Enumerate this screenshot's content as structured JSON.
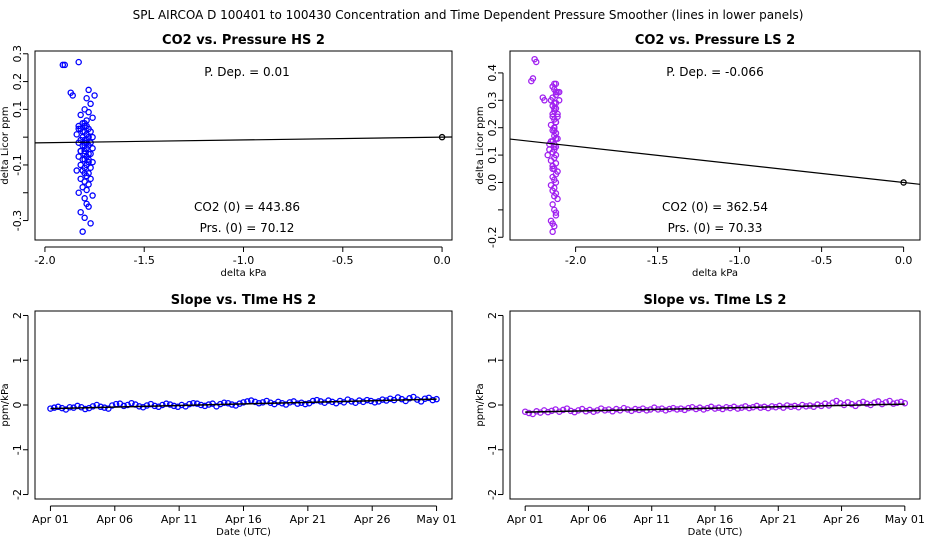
{
  "title": "SPL   AIRCOA D   100401 to 100430   Concentration and Time Dependent Pressure Smoother (lines in lower panels)",
  "colors": {
    "hs": "#0000ff",
    "ls": "#a020f0",
    "line": "#000000"
  },
  "chart_data": [
    {
      "id": "p1",
      "type": "scatter",
      "title": "CO2 vs. Pressure HS 2",
      "xlabel": "delta kPa",
      "ylabel": "delta Licor ppm",
      "xlim": [
        -2.05,
        0.05
      ],
      "ylim": [
        -0.37,
        0.31
      ],
      "xticks": [
        -2.0,
        -1.5,
        -1.0,
        -0.5,
        0.0
      ],
      "xtick_labels": [
        "-2.0",
        "-1.5",
        "-1.0",
        "-0.5",
        "0.0"
      ],
      "yticks": [
        -0.3,
        -0.2,
        -0.1,
        0.0,
        0.1,
        0.2,
        0.3
      ],
      "ytick_labels": [
        "-0.3",
        "",
        "-0.1",
        "",
        "0.1",
        "0.2",
        "0.3"
      ],
      "annotations": {
        "pdep": "P. Dep. =  0.01",
        "co2_0": "CO2 (0) =  443.86",
        "prs_0": "Prs. (0) =  70.12"
      },
      "fit_line": {
        "x": [
          -2.05,
          0.05
        ],
        "y": [
          -0.0205,
          0.0005
        ]
      },
      "origin_point": {
        "x": 0.0,
        "y": 0.0
      },
      "series_color": "hs",
      "points": {
        "x": [
          -1.91,
          -1.9,
          -1.83,
          -1.87,
          -1.86,
          -1.78,
          -1.79,
          -1.75,
          -1.8,
          -1.77,
          -1.82,
          -1.76,
          -1.81,
          -1.8,
          -1.79,
          -1.83,
          -1.78,
          -1.8,
          -1.77,
          -1.84,
          -1.79,
          -1.81,
          -1.78,
          -1.76,
          -1.8,
          -1.82,
          -1.79,
          -1.77,
          -1.83,
          -1.8,
          -1.78,
          -1.81,
          -1.79,
          -1.76,
          -1.82,
          -1.8,
          -1.78,
          -1.77,
          -1.83,
          -1.79,
          -1.81,
          -1.8,
          -1.76,
          -1.78,
          -1.82,
          -1.79,
          -1.8,
          -1.77,
          -1.81,
          -1.84,
          -1.78,
          -1.8,
          -1.79,
          -1.82,
          -1.77,
          -1.8,
          -1.78,
          -1.81,
          -1.79,
          -1.83,
          -1.76,
          -1.8,
          -1.79,
          -1.78,
          -1.82,
          -1.8,
          -1.77,
          -1.81,
          -1.79,
          -1.8,
          -1.78,
          -1.82,
          -1.8,
          -1.79,
          -1.81,
          -1.83,
          -1.78,
          -1.8,
          -1.79,
          -1.82
        ],
        "y": [
          0.26,
          0.26,
          0.27,
          0.16,
          0.15,
          0.17,
          0.14,
          0.15,
          0.1,
          0.12,
          0.08,
          0.07,
          0.05,
          0.04,
          0.04,
          0.03,
          0.03,
          0.02,
          0.02,
          0.01,
          0.01,
          0.0,
          0.0,
          0.0,
          -0.01,
          -0.01,
          -0.01,
          -0.02,
          -0.02,
          -0.02,
          -0.03,
          -0.03,
          -0.04,
          -0.04,
          -0.05,
          -0.05,
          -0.06,
          -0.06,
          -0.07,
          -0.07,
          -0.08,
          -0.08,
          -0.09,
          -0.09,
          -0.1,
          -0.1,
          -0.11,
          -0.11,
          -0.12,
          -0.12,
          -0.13,
          -0.13,
          -0.14,
          -0.15,
          -0.15,
          -0.16,
          -0.17,
          -0.18,
          -0.19,
          -0.2,
          -0.21,
          -0.22,
          -0.24,
          -0.25,
          -0.27,
          -0.29,
          -0.31,
          -0.34,
          0.06,
          0.05,
          0.09,
          0.03,
          -0.06,
          -0.02,
          0.02,
          0.04,
          -0.08,
          -0.03,
          0.01,
          -0.05
        ]
      }
    },
    {
      "id": "p2",
      "type": "scatter",
      "title": "CO2 vs. Pressure LS 2",
      "xlabel": "delta kPa",
      "ylabel": "delta Licor ppm",
      "xlim": [
        -2.4,
        0.1
      ],
      "ylim": [
        -0.21,
        0.48
      ],
      "xticks": [
        -2.0,
        -1.5,
        -1.0,
        -0.5,
        0.0
      ],
      "xtick_labels": [
        "-2.0",
        "-1.5",
        "-1.0",
        "-0.5",
        "0.0"
      ],
      "yticks": [
        -0.2,
        -0.1,
        0.0,
        0.1,
        0.2,
        0.3,
        0.4
      ],
      "ytick_labels": [
        "-0.2",
        "",
        "0.0",
        "0.1",
        "0.2",
        "0.3",
        "0.4"
      ],
      "annotations": {
        "pdep": "P. Dep. =  -0.066",
        "co2_0": "CO2 (0) =  362.54",
        "prs_0": "Prs. (0) =  70.33"
      },
      "fit_line": {
        "x": [
          -2.4,
          0.1
        ],
        "y": [
          0.1584,
          -0.0066
        ]
      },
      "origin_point": {
        "x": 0.0,
        "y": 0.0
      },
      "series_color": "ls",
      "points": {
        "x": [
          -2.25,
          -2.24,
          -2.26,
          -2.27,
          -2.19,
          -2.2,
          -2.12,
          -2.14,
          -2.13,
          -2.11,
          -2.12,
          -2.15,
          -2.13,
          -2.14,
          -2.12,
          -2.13,
          -2.11,
          -2.14,
          -2.13,
          -2.12,
          -2.15,
          -2.13,
          -2.14,
          -2.12,
          -2.13,
          -2.11,
          -2.14,
          -2.13,
          -2.12,
          -2.16,
          -2.13,
          -2.14,
          -2.12,
          -2.13,
          -2.15,
          -2.12,
          -2.14,
          -2.13,
          -2.11,
          -2.12,
          -2.14,
          -2.13,
          -2.12,
          -2.15,
          -2.13,
          -2.14,
          -2.12,
          -2.13,
          -2.11,
          -2.14,
          -2.13,
          -2.12,
          -2.15,
          -2.13,
          -2.14,
          -2.12,
          -2.13,
          -2.14,
          -2.12,
          -2.13,
          -2.14,
          -2.12,
          -2.13,
          -2.16,
          -2.1,
          -2.17,
          -2.1,
          -2.11,
          -2.15,
          -2.12,
          -2.13,
          -2.14,
          -2.12,
          -2.13,
          -2.14,
          -2.12
        ],
        "y": [
          0.45,
          0.44,
          0.38,
          0.37,
          0.3,
          0.31,
          0.36,
          0.35,
          0.34,
          0.33,
          0.32,
          0.3,
          0.29,
          0.28,
          0.27,
          0.26,
          0.25,
          0.24,
          0.23,
          0.22,
          0.21,
          0.2,
          0.19,
          0.18,
          0.17,
          0.16,
          0.15,
          0.14,
          0.13,
          0.12,
          0.12,
          0.11,
          0.1,
          0.09,
          0.08,
          0.07,
          0.06,
          0.05,
          0.04,
          0.03,
          0.02,
          0.01,
          0.0,
          -0.01,
          -0.02,
          -0.03,
          -0.04,
          -0.05,
          -0.06,
          -0.08,
          -0.1,
          -0.12,
          -0.14,
          -0.16,
          -0.18,
          0.33,
          0.36,
          0.31,
          0.29,
          0.27,
          0.25,
          0.22,
          0.2,
          0.14,
          0.33,
          0.1,
          0.3,
          0.24,
          0.15,
          0.16,
          0.13,
          -0.15,
          -0.11,
          0.19,
          0.05,
          0.18
        ]
      }
    },
    {
      "id": "p3",
      "type": "line",
      "title": "Slope vs. TIme HS 2",
      "xlabel": "Date (UTC)",
      "ylabel": "ppm/kPa",
      "xlim": [
        -1.2,
        31.2
      ],
      "ylim": [
        -2.1,
        2.1
      ],
      "xticks": [
        0,
        5,
        10,
        15,
        20,
        25,
        30
      ],
      "xtick_labels": [
        "Apr 01",
        "Apr 06",
        "Apr 11",
        "Apr 16",
        "Apr 21",
        "Apr 26",
        "May 01"
      ],
      "yticks": [
        -2,
        -1,
        0,
        1,
        2
      ],
      "ytick_labels": [
        "-2",
        "-1",
        "0",
        "1",
        "2"
      ],
      "series_color": "hs",
      "smooth": {
        "x": [
          0,
          10,
          20,
          30
        ],
        "y": [
          -0.08,
          -0.01,
          0.06,
          0.13
        ]
      },
      "points": {
        "x": [
          0,
          0.3,
          0.6,
          0.9,
          1.2,
          1.5,
          1.8,
          2.1,
          2.4,
          2.7,
          3,
          3.3,
          3.6,
          3.9,
          4.2,
          4.5,
          4.8,
          5.1,
          5.4,
          5.7,
          6,
          6.3,
          6.6,
          6.9,
          7.2,
          7.5,
          7.8,
          8.1,
          8.4,
          8.7,
          9,
          9.3,
          9.6,
          9.9,
          10.2,
          10.5,
          10.8,
          11.1,
          11.4,
          11.7,
          12,
          12.3,
          12.6,
          12.9,
          13.2,
          13.5,
          13.8,
          14.1,
          14.4,
          14.7,
          15,
          15.3,
          15.6,
          15.9,
          16.2,
          16.5,
          16.8,
          17.1,
          17.4,
          17.7,
          18,
          18.3,
          18.6,
          18.9,
          19.2,
          19.5,
          19.8,
          20.1,
          20.4,
          20.7,
          21,
          21.3,
          21.6,
          21.9,
          22.2,
          22.5,
          22.8,
          23.1,
          23.4,
          23.7,
          24,
          24.3,
          24.6,
          24.9,
          25.2,
          25.5,
          25.8,
          26.1,
          26.4,
          26.7,
          27,
          27.3,
          27.6,
          27.9,
          28.2,
          28.5,
          28.8,
          29.1,
          29.4,
          29.7,
          30
        ],
        "y": [
          -0.08,
          -0.06,
          -0.04,
          -0.07,
          -0.1,
          -0.05,
          -0.06,
          -0.02,
          -0.05,
          -0.09,
          -0.07,
          -0.03,
          0.0,
          -0.04,
          -0.06,
          -0.08,
          -0.01,
          0.02,
          0.03,
          -0.02,
          0.0,
          0.04,
          0.01,
          -0.03,
          -0.05,
          -0.01,
          0.02,
          -0.02,
          -0.04,
          0.0,
          0.03,
          0.01,
          -0.02,
          -0.04,
          0.0,
          -0.03,
          0.02,
          0.04,
          0.03,
          0.0,
          -0.02,
          0.01,
          0.03,
          -0.03,
          0.02,
          0.05,
          0.04,
          0.01,
          -0.01,
          0.03,
          0.06,
          0.08,
          0.1,
          0.07,
          0.04,
          0.06,
          0.09,
          0.05,
          0.02,
          0.07,
          0.04,
          0.01,
          0.06,
          0.08,
          0.03,
          0.05,
          0.02,
          0.04,
          0.09,
          0.11,
          0.08,
          0.05,
          0.1,
          0.07,
          0.04,
          0.09,
          0.06,
          0.12,
          0.08,
          0.05,
          0.1,
          0.07,
          0.11,
          0.09,
          0.06,
          0.08,
          0.12,
          0.1,
          0.14,
          0.11,
          0.17,
          0.13,
          0.09,
          0.15,
          0.18,
          0.12,
          0.08,
          0.14,
          0.16,
          0.11,
          0.13
        ]
      }
    },
    {
      "id": "p4",
      "type": "line",
      "title": "Slope vs. TIme LS 2",
      "xlabel": "Date (UTC)",
      "ylabel": "ppm/kPa",
      "xlim": [
        -1.2,
        31.2
      ],
      "ylim": [
        -2.1,
        2.1
      ],
      "xticks": [
        0,
        5,
        10,
        15,
        20,
        25,
        30
      ],
      "xtick_labels": [
        "Apr 01",
        "Apr 06",
        "Apr 11",
        "Apr 16",
        "Apr 21",
        "Apr 26",
        "May 01"
      ],
      "yticks": [
        -2,
        -1,
        0,
        1,
        2
      ],
      "ytick_labels": [
        "-2",
        "-1",
        "0",
        "1",
        "2"
      ],
      "series_color": "ls",
      "smooth": {
        "x": [
          0,
          10,
          20,
          30
        ],
        "y": [
          -0.16,
          -0.1,
          -0.04,
          0.02
        ]
      },
      "points": {
        "x": [
          0,
          0.3,
          0.6,
          0.9,
          1.2,
          1.5,
          1.8,
          2.1,
          2.4,
          2.7,
          3,
          3.3,
          3.6,
          3.9,
          4.2,
          4.5,
          4.8,
          5.1,
          5.4,
          5.7,
          6,
          6.3,
          6.6,
          6.9,
          7.2,
          7.5,
          7.8,
          8.1,
          8.4,
          8.7,
          9,
          9.3,
          9.6,
          9.9,
          10.2,
          10.5,
          10.8,
          11.1,
          11.4,
          11.7,
          12,
          12.3,
          12.6,
          12.9,
          13.2,
          13.5,
          13.8,
          14.1,
          14.4,
          14.7,
          15,
          15.3,
          15.6,
          15.9,
          16.2,
          16.5,
          16.8,
          17.1,
          17.4,
          17.7,
          18,
          18.3,
          18.6,
          18.9,
          19.2,
          19.5,
          19.8,
          20.1,
          20.4,
          20.7,
          21,
          21.3,
          21.6,
          21.9,
          22.2,
          22.5,
          22.8,
          23.1,
          23.4,
          23.7,
          24,
          24.3,
          24.6,
          24.9,
          25.2,
          25.5,
          25.8,
          26.1,
          26.4,
          26.7,
          27,
          27.3,
          27.6,
          27.9,
          28.2,
          28.5,
          28.8,
          29.1,
          29.4,
          29.7,
          30
        ],
        "y": [
          -0.15,
          -0.18,
          -0.2,
          -0.14,
          -0.17,
          -0.12,
          -0.16,
          -0.13,
          -0.1,
          -0.15,
          -0.11,
          -0.08,
          -0.13,
          -0.16,
          -0.12,
          -0.09,
          -0.14,
          -0.11,
          -0.15,
          -0.12,
          -0.08,
          -0.12,
          -0.1,
          -0.14,
          -0.09,
          -0.12,
          -0.07,
          -0.1,
          -0.13,
          -0.09,
          -0.11,
          -0.08,
          -0.12,
          -0.1,
          -0.06,
          -0.1,
          -0.08,
          -0.12,
          -0.09,
          -0.07,
          -0.1,
          -0.08,
          -0.11,
          -0.07,
          -0.05,
          -0.09,
          -0.06,
          -0.1,
          -0.07,
          -0.04,
          -0.08,
          -0.06,
          -0.09,
          -0.05,
          -0.07,
          -0.04,
          -0.08,
          -0.06,
          -0.03,
          -0.07,
          -0.05,
          -0.02,
          -0.06,
          -0.04,
          -0.07,
          -0.03,
          -0.05,
          -0.02,
          -0.06,
          -0.01,
          -0.04,
          -0.02,
          -0.05,
          0.0,
          -0.03,
          -0.01,
          -0.04,
          0.01,
          -0.02,
          0.03,
          -0.01,
          0.05,
          0.09,
          0.04,
          0.0,
          0.06,
          0.02,
          -0.02,
          0.04,
          0.07,
          0.03,
          0.0,
          0.05,
          0.08,
          0.02,
          0.06,
          0.09,
          0.03,
          0.05,
          0.07,
          0.04
        ]
      }
    }
  ]
}
